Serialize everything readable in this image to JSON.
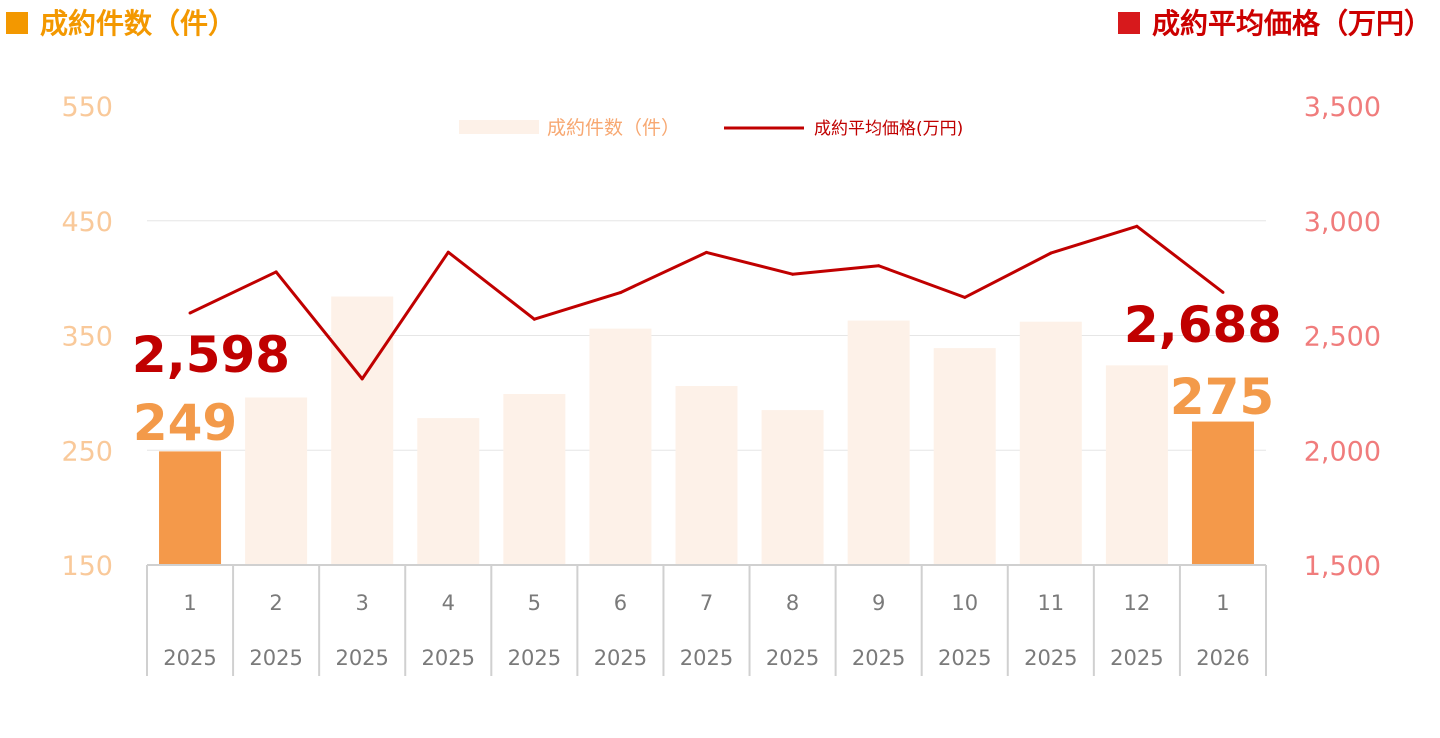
{
  "header": {
    "left_title": "成約件数（件）",
    "right_title": "成約平均価格（万円）"
  },
  "legend": {
    "bar_label": "成約件数（件）",
    "line_label": "成約平均価格(万円)"
  },
  "colors": {
    "bar_highlight": "#F4994A",
    "bar_faded": "#FDF1E8",
    "line": "#C00000",
    "left_axis_text": "#F9C99A",
    "right_axis_text": "#F07C7C"
  },
  "chart_data": {
    "type": "bar",
    "categories": [
      [
        "1",
        "2025"
      ],
      [
        "2",
        "2025"
      ],
      [
        "3",
        "2025"
      ],
      [
        "4",
        "2025"
      ],
      [
        "5",
        "2025"
      ],
      [
        "6",
        "2025"
      ],
      [
        "7",
        "2025"
      ],
      [
        "8",
        "2025"
      ],
      [
        "9",
        "2025"
      ],
      [
        "10",
        "2025"
      ],
      [
        "11",
        "2025"
      ],
      [
        "12",
        "2025"
      ],
      [
        "1",
        "2026"
      ]
    ],
    "series": [
      {
        "name": "成約件数（件）",
        "type": "bar",
        "axis": "left",
        "values": [
          249,
          296,
          384,
          278,
          299,
          356,
          306,
          285,
          363,
          339,
          362,
          324,
          275
        ],
        "highlight": [
          true,
          false,
          false,
          false,
          false,
          false,
          false,
          false,
          false,
          false,
          false,
          false,
          true
        ]
      },
      {
        "name": "成約平均価格(万円)",
        "type": "line",
        "axis": "right",
        "values": [
          2598,
          2777,
          2311,
          2863,
          2571,
          2687,
          2862,
          2767,
          2804,
          2666,
          2859,
          2976,
          2688
        ]
      }
    ],
    "left_axis": {
      "ylim": [
        150,
        550
      ],
      "ticks": [
        "150",
        "250",
        "350",
        "450",
        "550"
      ]
    },
    "right_axis": {
      "ylim": [
        1500,
        3500
      ],
      "ticks": [
        "1,500",
        "2,000",
        "2,500",
        "3,000",
        "3,500"
      ]
    },
    "annotations": {
      "first_price": "2,598",
      "first_count": "249",
      "last_price": "2,688",
      "last_count": "275"
    },
    "grid": true,
    "legend_position": "top-center"
  }
}
